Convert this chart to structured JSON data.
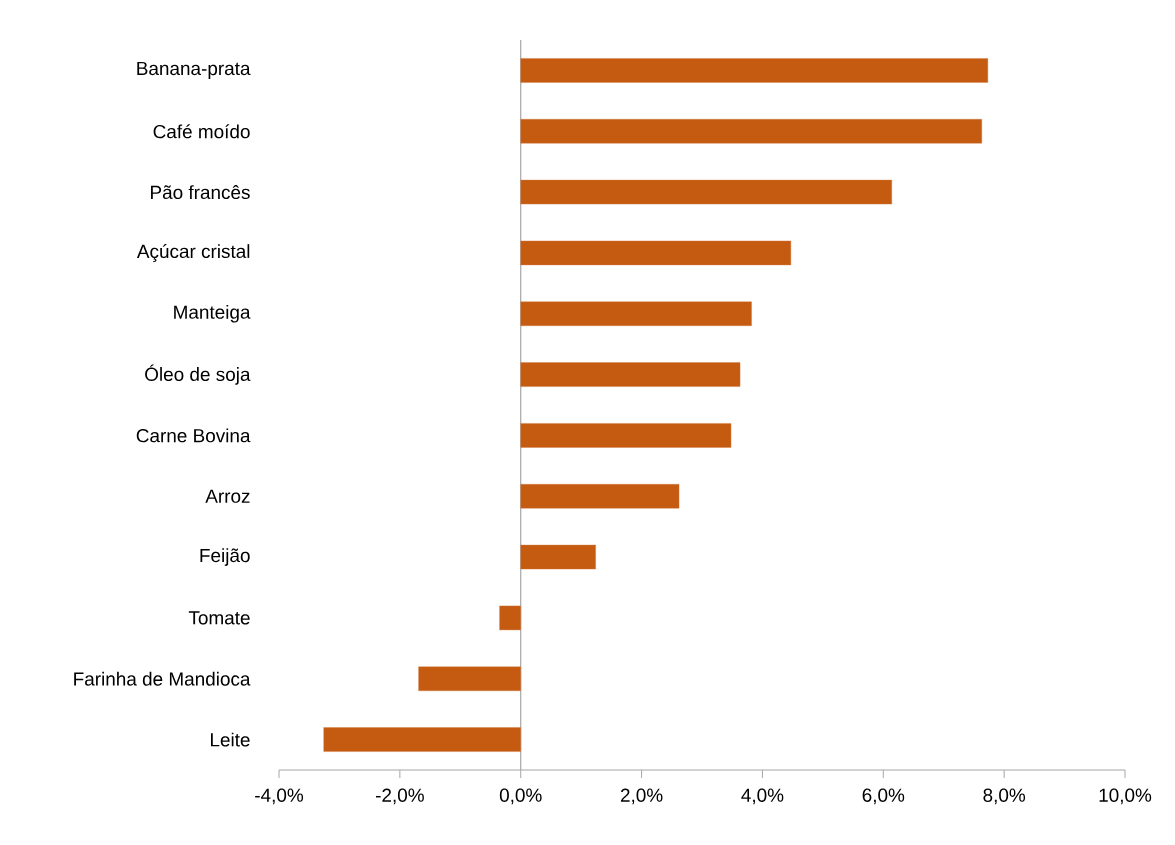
{
  "chart_data": {
    "type": "bar",
    "orientation": "horizontal",
    "categories": [
      "Banana-prata",
      "Café moído",
      "Pão francês",
      "Açúcar cristal",
      "Manteiga",
      "Óleo de soja",
      "Carne Bovina",
      "Arroz",
      "Feijão",
      "Tomate",
      "Farinha de Mandioca",
      "Leite"
    ],
    "values": [
      7.73,
      7.63,
      6.14,
      4.47,
      3.82,
      3.63,
      3.48,
      2.62,
      1.24,
      -0.35,
      -1.69,
      -3.26
    ],
    "color": "#c55a11",
    "xlim": [
      -4,
      10
    ],
    "xticks": [
      {
        "value": -4,
        "label": "-4,0%"
      },
      {
        "value": -2,
        "label": "-2,0%"
      },
      {
        "value": 0,
        "label": "0,0%"
      },
      {
        "value": 2,
        "label": "2,0%"
      },
      {
        "value": 4,
        "label": "4,0%"
      },
      {
        "value": 6,
        "label": "6,0%"
      },
      {
        "value": 8,
        "label": "8,0%"
      },
      {
        "value": 10,
        "label": "10,0%"
      }
    ]
  }
}
